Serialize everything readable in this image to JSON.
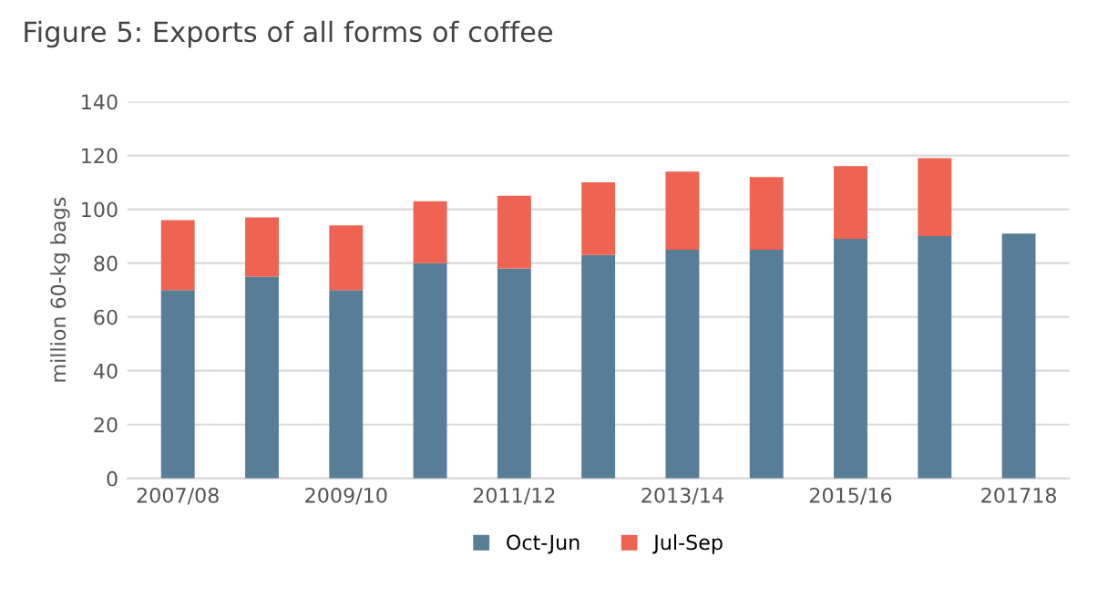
{
  "chart_data": {
    "type": "bar",
    "title": "Figure 5: Exports of all forms of coffee",
    "ylabel": "million 60-kg bags",
    "stacked": true,
    "categories": [
      "2007/08",
      null,
      "2009/10",
      null,
      "2011/12",
      null,
      "2013/14",
      null,
      "2015/16",
      null,
      "201718"
    ],
    "series": [
      {
        "name": "Oct-Jun",
        "color": "#587d96",
        "values": [
          70,
          75,
          70,
          80,
          78,
          83,
          85,
          85,
          89,
          90,
          91
        ]
      },
      {
        "name": "Jul-Sep",
        "color": "#ee6352",
        "values": [
          26,
          22,
          24,
          23,
          27,
          27,
          29,
          27,
          27,
          29,
          null
        ]
      }
    ],
    "ylim": [
      0,
      140
    ],
    "yticks": [
      0,
      20,
      40,
      60,
      80,
      100,
      120,
      140
    ],
    "grid": "y",
    "legend": "bottom"
  }
}
